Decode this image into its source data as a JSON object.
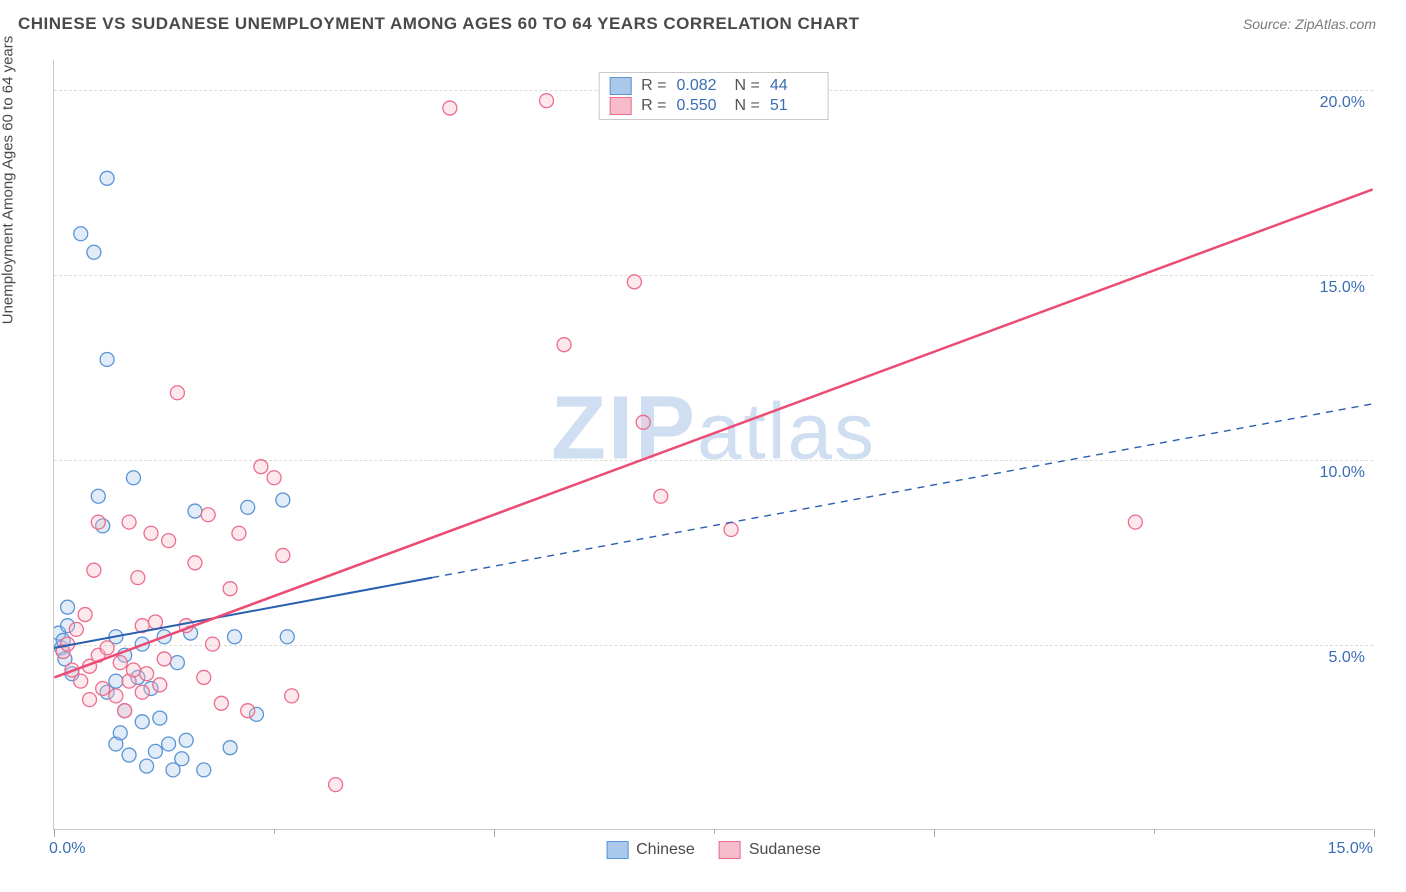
{
  "title": "CHINESE VS SUDANESE UNEMPLOYMENT AMONG AGES 60 TO 64 YEARS CORRELATION CHART",
  "source": "Source: ZipAtlas.com",
  "watermark_bold": "ZIP",
  "watermark_light": "atlas",
  "chart": {
    "type": "scatter",
    "background_color": "#ffffff",
    "grid_color": "#dcdcdc",
    "axis_color": "#c8c8c8",
    "tick_label_color": "#3b6db5",
    "axis_label_color": "#4a4a4a",
    "y_axis_label": "Unemployment Among Ages 60 to 64 years",
    "xlim": [
      0,
      15
    ],
    "ylim": [
      0,
      20.8
    ],
    "x_ticks": [
      0,
      5,
      10,
      15
    ],
    "x_tick_labels": [
      "0.0%",
      "",
      "",
      "15.0%"
    ],
    "y_gridlines": [
      5,
      10,
      15,
      20
    ],
    "y_tick_labels": [
      "5.0%",
      "10.0%",
      "15.0%",
      "20.0%"
    ],
    "x_minor_tick_step": 2.5,
    "marker_radius": 7,
    "marker_stroke_width": 1.3,
    "marker_fill_opacity": 0.35,
    "series": [
      {
        "name": "Chinese",
        "color_stroke": "#5a94d6",
        "color_fill": "#a9c8ea",
        "r_value": "0.082",
        "n_value": "44",
        "trend": {
          "x1": 0,
          "y1": 4.9,
          "x2": 4.3,
          "y2": 6.8,
          "dashed_to_x": 15,
          "dashed_to_y": 11.5,
          "stroke": "#2a5fb0",
          "width": 2
        },
        "points": [
          [
            0.05,
            5.3
          ],
          [
            0.08,
            4.9
          ],
          [
            0.1,
            5.1
          ],
          [
            0.12,
            4.6
          ],
          [
            0.15,
            5.5
          ],
          [
            0.15,
            6.0
          ],
          [
            0.2,
            4.2
          ],
          [
            0.3,
            16.1
          ],
          [
            0.45,
            15.6
          ],
          [
            0.5,
            9.0
          ],
          [
            0.55,
            8.2
          ],
          [
            0.6,
            17.6
          ],
          [
            0.6,
            12.7
          ],
          [
            0.6,
            3.7
          ],
          [
            0.7,
            2.3
          ],
          [
            0.7,
            4.0
          ],
          [
            0.7,
            5.2
          ],
          [
            0.75,
            2.6
          ],
          [
            0.8,
            3.2
          ],
          [
            0.8,
            4.7
          ],
          [
            0.85,
            2.0
          ],
          [
            0.9,
            9.5
          ],
          [
            0.95,
            4.1
          ],
          [
            1.0,
            2.9
          ],
          [
            1.0,
            5.0
          ],
          [
            1.05,
            1.7
          ],
          [
            1.1,
            3.8
          ],
          [
            1.15,
            2.1
          ],
          [
            1.2,
            3.0
          ],
          [
            1.25,
            5.2
          ],
          [
            1.3,
            2.3
          ],
          [
            1.35,
            1.6
          ],
          [
            1.4,
            4.5
          ],
          [
            1.45,
            1.9
          ],
          [
            1.5,
            2.4
          ],
          [
            1.55,
            5.3
          ],
          [
            1.6,
            8.6
          ],
          [
            1.7,
            1.6
          ],
          [
            2.0,
            2.2
          ],
          [
            2.05,
            5.2
          ],
          [
            2.2,
            8.7
          ],
          [
            2.3,
            3.1
          ],
          [
            2.6,
            8.9
          ],
          [
            2.65,
            5.2
          ]
        ]
      },
      {
        "name": "Sudanese",
        "color_stroke": "#ec6d8c",
        "color_fill": "#f7bccb",
        "r_value": "0.550",
        "n_value": "51",
        "trend": {
          "x1": 0,
          "y1": 4.1,
          "x2": 15,
          "y2": 17.3,
          "stroke": "#ec4b73",
          "width": 2.5
        },
        "points": [
          [
            0.1,
            4.8
          ],
          [
            0.15,
            5.0
          ],
          [
            0.2,
            4.3
          ],
          [
            0.25,
            5.4
          ],
          [
            0.3,
            4.0
          ],
          [
            0.35,
            5.8
          ],
          [
            0.4,
            3.5
          ],
          [
            0.4,
            4.4
          ],
          [
            0.45,
            7.0
          ],
          [
            0.5,
            4.7
          ],
          [
            0.5,
            8.3
          ],
          [
            0.55,
            3.8
          ],
          [
            0.6,
            4.9
          ],
          [
            0.7,
            3.6
          ],
          [
            0.75,
            4.5
          ],
          [
            0.8,
            3.2
          ],
          [
            0.85,
            4.0
          ],
          [
            0.85,
            8.3
          ],
          [
            0.9,
            4.3
          ],
          [
            0.95,
            6.8
          ],
          [
            1.0,
            3.7
          ],
          [
            1.0,
            5.5
          ],
          [
            1.05,
            4.2
          ],
          [
            1.1,
            8.0
          ],
          [
            1.15,
            5.6
          ],
          [
            1.2,
            3.9
          ],
          [
            1.25,
            4.6
          ],
          [
            1.3,
            7.8
          ],
          [
            1.4,
            11.8
          ],
          [
            1.5,
            5.5
          ],
          [
            1.6,
            7.2
          ],
          [
            1.7,
            4.1
          ],
          [
            1.75,
            8.5
          ],
          [
            1.8,
            5.0
          ],
          [
            1.9,
            3.4
          ],
          [
            2.0,
            6.5
          ],
          [
            2.1,
            8.0
          ],
          [
            2.2,
            3.2
          ],
          [
            2.35,
            9.8
          ],
          [
            2.5,
            9.5
          ],
          [
            2.6,
            7.4
          ],
          [
            2.7,
            3.6
          ],
          [
            3.2,
            1.2
          ],
          [
            4.5,
            19.5
          ],
          [
            6.6,
            14.8
          ],
          [
            5.8,
            13.1
          ],
          [
            6.9,
            9.0
          ],
          [
            6.7,
            11.0
          ],
          [
            7.7,
            8.1
          ],
          [
            12.3,
            8.3
          ],
          [
            5.6,
            19.7
          ]
        ]
      }
    ],
    "legend_top": {
      "border_color": "#c8c8c8",
      "rows": [
        {
          "swatch_fill": "#a9c8ea",
          "swatch_stroke": "#5a94d6",
          "r": "0.082",
          "n": "44"
        },
        {
          "swatch_fill": "#f7bccb",
          "swatch_stroke": "#ec6d8c",
          "r": "0.550",
          "n": "51"
        }
      ]
    },
    "legend_bottom": [
      {
        "swatch_fill": "#a9c8ea",
        "swatch_stroke": "#5a94d6",
        "label": "Chinese"
      },
      {
        "swatch_fill": "#f7bccb",
        "swatch_stroke": "#ec6d8c",
        "label": "Sudanese"
      }
    ]
  }
}
